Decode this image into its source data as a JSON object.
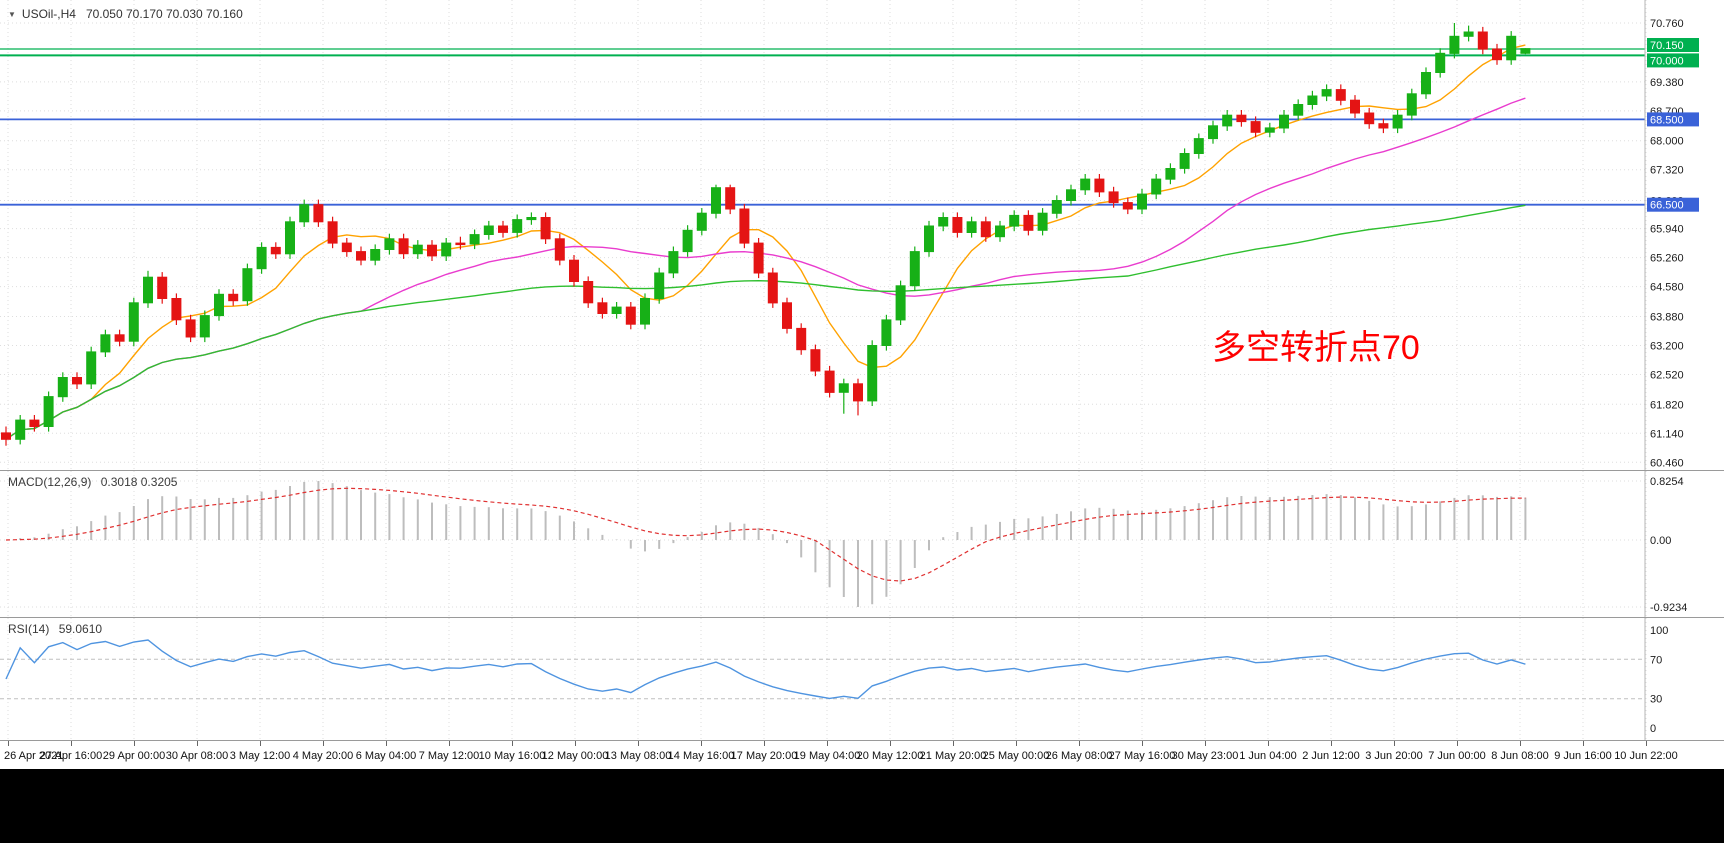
{
  "window": {
    "title_symbol": "USOil-,H4",
    "title_ohlc": "70.050 70.170 70.030 70.160"
  },
  "annotation": {
    "text": "多空转折点70",
    "color": "#ff0000"
  },
  "colors": {
    "up_candle": "#17b017",
    "down_candle": "#e41414",
    "ma_fast": "#ffa200",
    "ma_mid": "#e93cce",
    "ma_slow": "#2fbf2f",
    "hline_blue": "#3a62d8",
    "hline_green": "#00b050",
    "rsi_line": "#4f94e0",
    "macd_hist": "#bdbdbd",
    "macd_signal": "#e03131",
    "annotation_red": "#ff0000"
  },
  "chart_data": {
    "type": "candlestick",
    "symbol": "USOil-",
    "timeframe": "H4",
    "current_bar": {
      "open": 70.05,
      "high": 70.17,
      "low": 70.03,
      "close": 70.16
    },
    "x_labels": [
      "26 Apr 2021",
      "27 Apr 16:00",
      "29 Apr 00:00",
      "30 Apr 08:00",
      "3 May 12:00",
      "4 May 20:00",
      "6 May 04:00",
      "7 May 12:00",
      "10 May 16:00",
      "12 May 00:00",
      "13 May 08:00",
      "14 May 16:00",
      "17 May 20:00",
      "19 May 04:00",
      "20 May 12:00",
      "21 May 20:00",
      "25 May 00:00",
      "26 May 08:00",
      "27 May 16:00",
      "30 May 23:00",
      "1 Jun 04:00",
      "2 Jun 12:00",
      "3 Jun 20:00",
      "7 Jun 00:00",
      "8 Jun 08:00",
      "9 Jun 16:00",
      "10 Jun 22:00"
    ],
    "y_axis": {
      "labels": [
        {
          "value": 70.76,
          "text": "70.760"
        },
        {
          "value": 70.15,
          "text": "70.150",
          "tag": "green"
        },
        {
          "value": 70.0,
          "text": "70.000",
          "tag": "green"
        },
        {
          "value": 69.38,
          "text": "69.380"
        },
        {
          "value": 68.7,
          "text": "68.700"
        },
        {
          "value": 68.5,
          "text": "68.500",
          "tag": "blue"
        },
        {
          "value": 68.0,
          "text": "68.000"
        },
        {
          "value": 67.32,
          "text": "67.320"
        },
        {
          "value": 66.6,
          "text": "66.600"
        },
        {
          "value": 66.5,
          "text": "66.500",
          "tag": "blue"
        },
        {
          "value": 65.94,
          "text": "65.940"
        },
        {
          "value": 65.26,
          "text": "65.260"
        },
        {
          "value": 64.58,
          "text": "64.580"
        },
        {
          "value": 63.88,
          "text": "63.880"
        },
        {
          "value": 63.2,
          "text": "63.200"
        },
        {
          "value": 62.52,
          "text": "62.520"
        },
        {
          "value": 61.82,
          "text": "61.820"
        },
        {
          "value": 61.14,
          "text": "61.140"
        },
        {
          "value": 60.46,
          "text": "60.460"
        }
      ]
    },
    "hlines": [
      {
        "value": 70.15,
        "color": "#00b050",
        "width": 1.2
      },
      {
        "value": 70.0,
        "color": "#00b050",
        "width": 2
      },
      {
        "value": 68.5,
        "color": "#3a62d8",
        "width": 1.8
      },
      {
        "value": 66.5,
        "color": "#3a62d8",
        "width": 1.8
      }
    ],
    "candles": [
      [
        61.15,
        61.3,
        60.85,
        61.0
      ],
      [
        61.0,
        61.57,
        60.88,
        61.45
      ],
      [
        61.45,
        61.57,
        61.18,
        61.3
      ],
      [
        61.3,
        62.12,
        61.18,
        62.0
      ],
      [
        62.0,
        62.57,
        61.88,
        62.45
      ],
      [
        62.45,
        62.57,
        62.18,
        62.3
      ],
      [
        62.3,
        63.17,
        62.18,
        63.05
      ],
      [
        63.05,
        63.57,
        62.93,
        63.45
      ],
      [
        63.45,
        63.57,
        63.18,
        63.3
      ],
      [
        63.3,
        64.32,
        63.18,
        64.2
      ],
      [
        64.2,
        64.95,
        64.08,
        64.8
      ],
      [
        64.8,
        64.92,
        64.18,
        64.3
      ],
      [
        64.3,
        64.42,
        63.68,
        63.8
      ],
      [
        63.8,
        63.92,
        63.28,
        63.4
      ],
      [
        63.4,
        64.02,
        63.28,
        63.9
      ],
      [
        63.9,
        64.52,
        63.78,
        64.4
      ],
      [
        64.4,
        64.52,
        64.13,
        64.25
      ],
      [
        64.25,
        65.12,
        64.13,
        65.0
      ],
      [
        65.0,
        65.62,
        64.88,
        65.5
      ],
      [
        65.5,
        65.62,
        65.23,
        65.35
      ],
      [
        65.35,
        66.22,
        65.23,
        66.1
      ],
      [
        66.1,
        66.62,
        65.98,
        66.5
      ],
      [
        66.5,
        66.62,
        65.98,
        66.1
      ],
      [
        66.1,
        66.22,
        65.48,
        65.6
      ],
      [
        65.6,
        65.72,
        65.28,
        65.4
      ],
      [
        65.4,
        65.52,
        65.08,
        65.2
      ],
      [
        65.2,
        65.57,
        65.08,
        65.45
      ],
      [
        65.45,
        65.82,
        65.33,
        65.7
      ],
      [
        65.7,
        65.82,
        65.23,
        65.35
      ],
      [
        65.35,
        65.67,
        65.23,
        65.55
      ],
      [
        65.55,
        65.67,
        65.18,
        65.3
      ],
      [
        65.3,
        65.72,
        65.18,
        65.6
      ],
      [
        65.6,
        65.75,
        65.45,
        65.58
      ],
      [
        65.58,
        65.92,
        65.46,
        65.8
      ],
      [
        65.8,
        66.12,
        65.68,
        66.0
      ],
      [
        66.0,
        66.12,
        65.73,
        65.85
      ],
      [
        65.85,
        66.27,
        65.73,
        66.15
      ],
      [
        66.15,
        66.32,
        66.03,
        66.2
      ],
      [
        66.2,
        66.32,
        65.58,
        65.7
      ],
      [
        65.7,
        65.82,
        65.08,
        65.2
      ],
      [
        65.2,
        65.32,
        64.58,
        64.7
      ],
      [
        64.7,
        64.82,
        64.08,
        64.2
      ],
      [
        64.2,
        64.32,
        63.83,
        63.95
      ],
      [
        63.95,
        64.22,
        63.83,
        64.1
      ],
      [
        64.1,
        64.22,
        63.58,
        63.7
      ],
      [
        63.7,
        64.42,
        63.58,
        64.3
      ],
      [
        64.3,
        65.02,
        64.18,
        64.9
      ],
      [
        64.9,
        65.52,
        64.78,
        65.4
      ],
      [
        65.4,
        66.02,
        65.28,
        65.9
      ],
      [
        65.9,
        66.42,
        65.78,
        66.3
      ],
      [
        66.3,
        66.97,
        66.18,
        66.9
      ],
      [
        66.9,
        66.97,
        66.28,
        66.4
      ],
      [
        66.4,
        66.52,
        65.48,
        65.6
      ],
      [
        65.6,
        65.72,
        64.78,
        64.9
      ],
      [
        64.9,
        65.02,
        64.08,
        64.2
      ],
      [
        64.2,
        64.32,
        63.48,
        63.6
      ],
      [
        63.6,
        63.72,
        62.98,
        63.1
      ],
      [
        63.1,
        63.22,
        62.48,
        62.6
      ],
      [
        62.6,
        62.72,
        61.98,
        62.1
      ],
      [
        62.1,
        62.42,
        61.6,
        62.3
      ],
      [
        62.3,
        62.42,
        61.56,
        61.9
      ],
      [
        61.9,
        63.32,
        61.78,
        63.2
      ],
      [
        63.2,
        63.92,
        63.08,
        63.8
      ],
      [
        63.8,
        64.72,
        63.68,
        64.6
      ],
      [
        64.6,
        65.52,
        64.48,
        65.4
      ],
      [
        65.4,
        66.12,
        65.28,
        66.0
      ],
      [
        66.0,
        66.32,
        65.88,
        66.2
      ],
      [
        66.2,
        66.32,
        65.73,
        65.85
      ],
      [
        65.85,
        66.22,
        65.73,
        66.1
      ],
      [
        66.1,
        66.22,
        65.63,
        65.75
      ],
      [
        65.75,
        66.12,
        65.63,
        66.0
      ],
      [
        66.0,
        66.37,
        65.88,
        66.25
      ],
      [
        66.25,
        66.37,
        65.78,
        65.9
      ],
      [
        65.9,
        66.42,
        65.78,
        66.3
      ],
      [
        66.3,
        66.72,
        66.18,
        66.6
      ],
      [
        66.6,
        66.97,
        66.48,
        66.85
      ],
      [
        66.85,
        67.22,
        66.73,
        67.1
      ],
      [
        67.1,
        67.22,
        66.68,
        66.8
      ],
      [
        66.8,
        66.92,
        66.43,
        66.55
      ],
      [
        66.55,
        66.67,
        66.28,
        66.4
      ],
      [
        66.4,
        66.87,
        66.28,
        66.75
      ],
      [
        66.75,
        67.22,
        66.63,
        67.1
      ],
      [
        67.1,
        67.47,
        66.98,
        67.35
      ],
      [
        67.35,
        67.82,
        67.23,
        67.7
      ],
      [
        67.7,
        68.17,
        67.58,
        68.05
      ],
      [
        68.05,
        68.47,
        67.93,
        68.35
      ],
      [
        68.35,
        68.72,
        68.23,
        68.6
      ],
      [
        68.6,
        68.72,
        68.33,
        68.45
      ],
      [
        68.45,
        68.57,
        68.08,
        68.2
      ],
      [
        68.2,
        68.42,
        68.08,
        68.3
      ],
      [
        68.3,
        68.72,
        68.18,
        68.6
      ],
      [
        68.6,
        68.97,
        68.48,
        68.85
      ],
      [
        68.85,
        69.17,
        68.73,
        69.05
      ],
      [
        69.05,
        69.32,
        68.93,
        69.2
      ],
      [
        69.2,
        69.32,
        68.83,
        68.95
      ],
      [
        68.95,
        69.07,
        68.53,
        68.65
      ],
      [
        68.65,
        68.77,
        68.28,
        68.4
      ],
      [
        68.4,
        68.52,
        68.18,
        68.3
      ],
      [
        68.3,
        68.72,
        68.18,
        68.6
      ],
      [
        68.6,
        69.22,
        68.48,
        69.1
      ],
      [
        69.1,
        69.72,
        68.98,
        69.6
      ],
      [
        69.6,
        70.17,
        69.48,
        70.05
      ],
      [
        70.05,
        70.76,
        69.93,
        70.45
      ],
      [
        70.45,
        70.7,
        70.33,
        70.55
      ],
      [
        70.55,
        70.67,
        70.03,
        70.15
      ],
      [
        70.15,
        70.27,
        69.78,
        69.9
      ],
      [
        69.9,
        70.57,
        69.78,
        70.45
      ],
      [
        70.05,
        70.17,
        70.03,
        70.16
      ]
    ],
    "moving_average_colors": [
      "#ffa200",
      "#e93cce",
      "#2fbf2f"
    ],
    "indicators": {
      "macd": {
        "label": "MACD(12,26,9)",
        "values_text": "0.3018 0.3205",
        "axis_labels": [
          "0.8254",
          "0.00",
          "-0.9234"
        ],
        "axis_values": [
          0.8254,
          0,
          -0.9234
        ]
      },
      "rsi": {
        "label": "RSI(14)",
        "value_text": "59.0610",
        "axis_labels": [
          "100",
          "70",
          "30",
          "0"
        ],
        "axis_values": [
          100,
          70,
          30,
          0
        ],
        "levels": [
          70,
          30
        ]
      }
    }
  }
}
